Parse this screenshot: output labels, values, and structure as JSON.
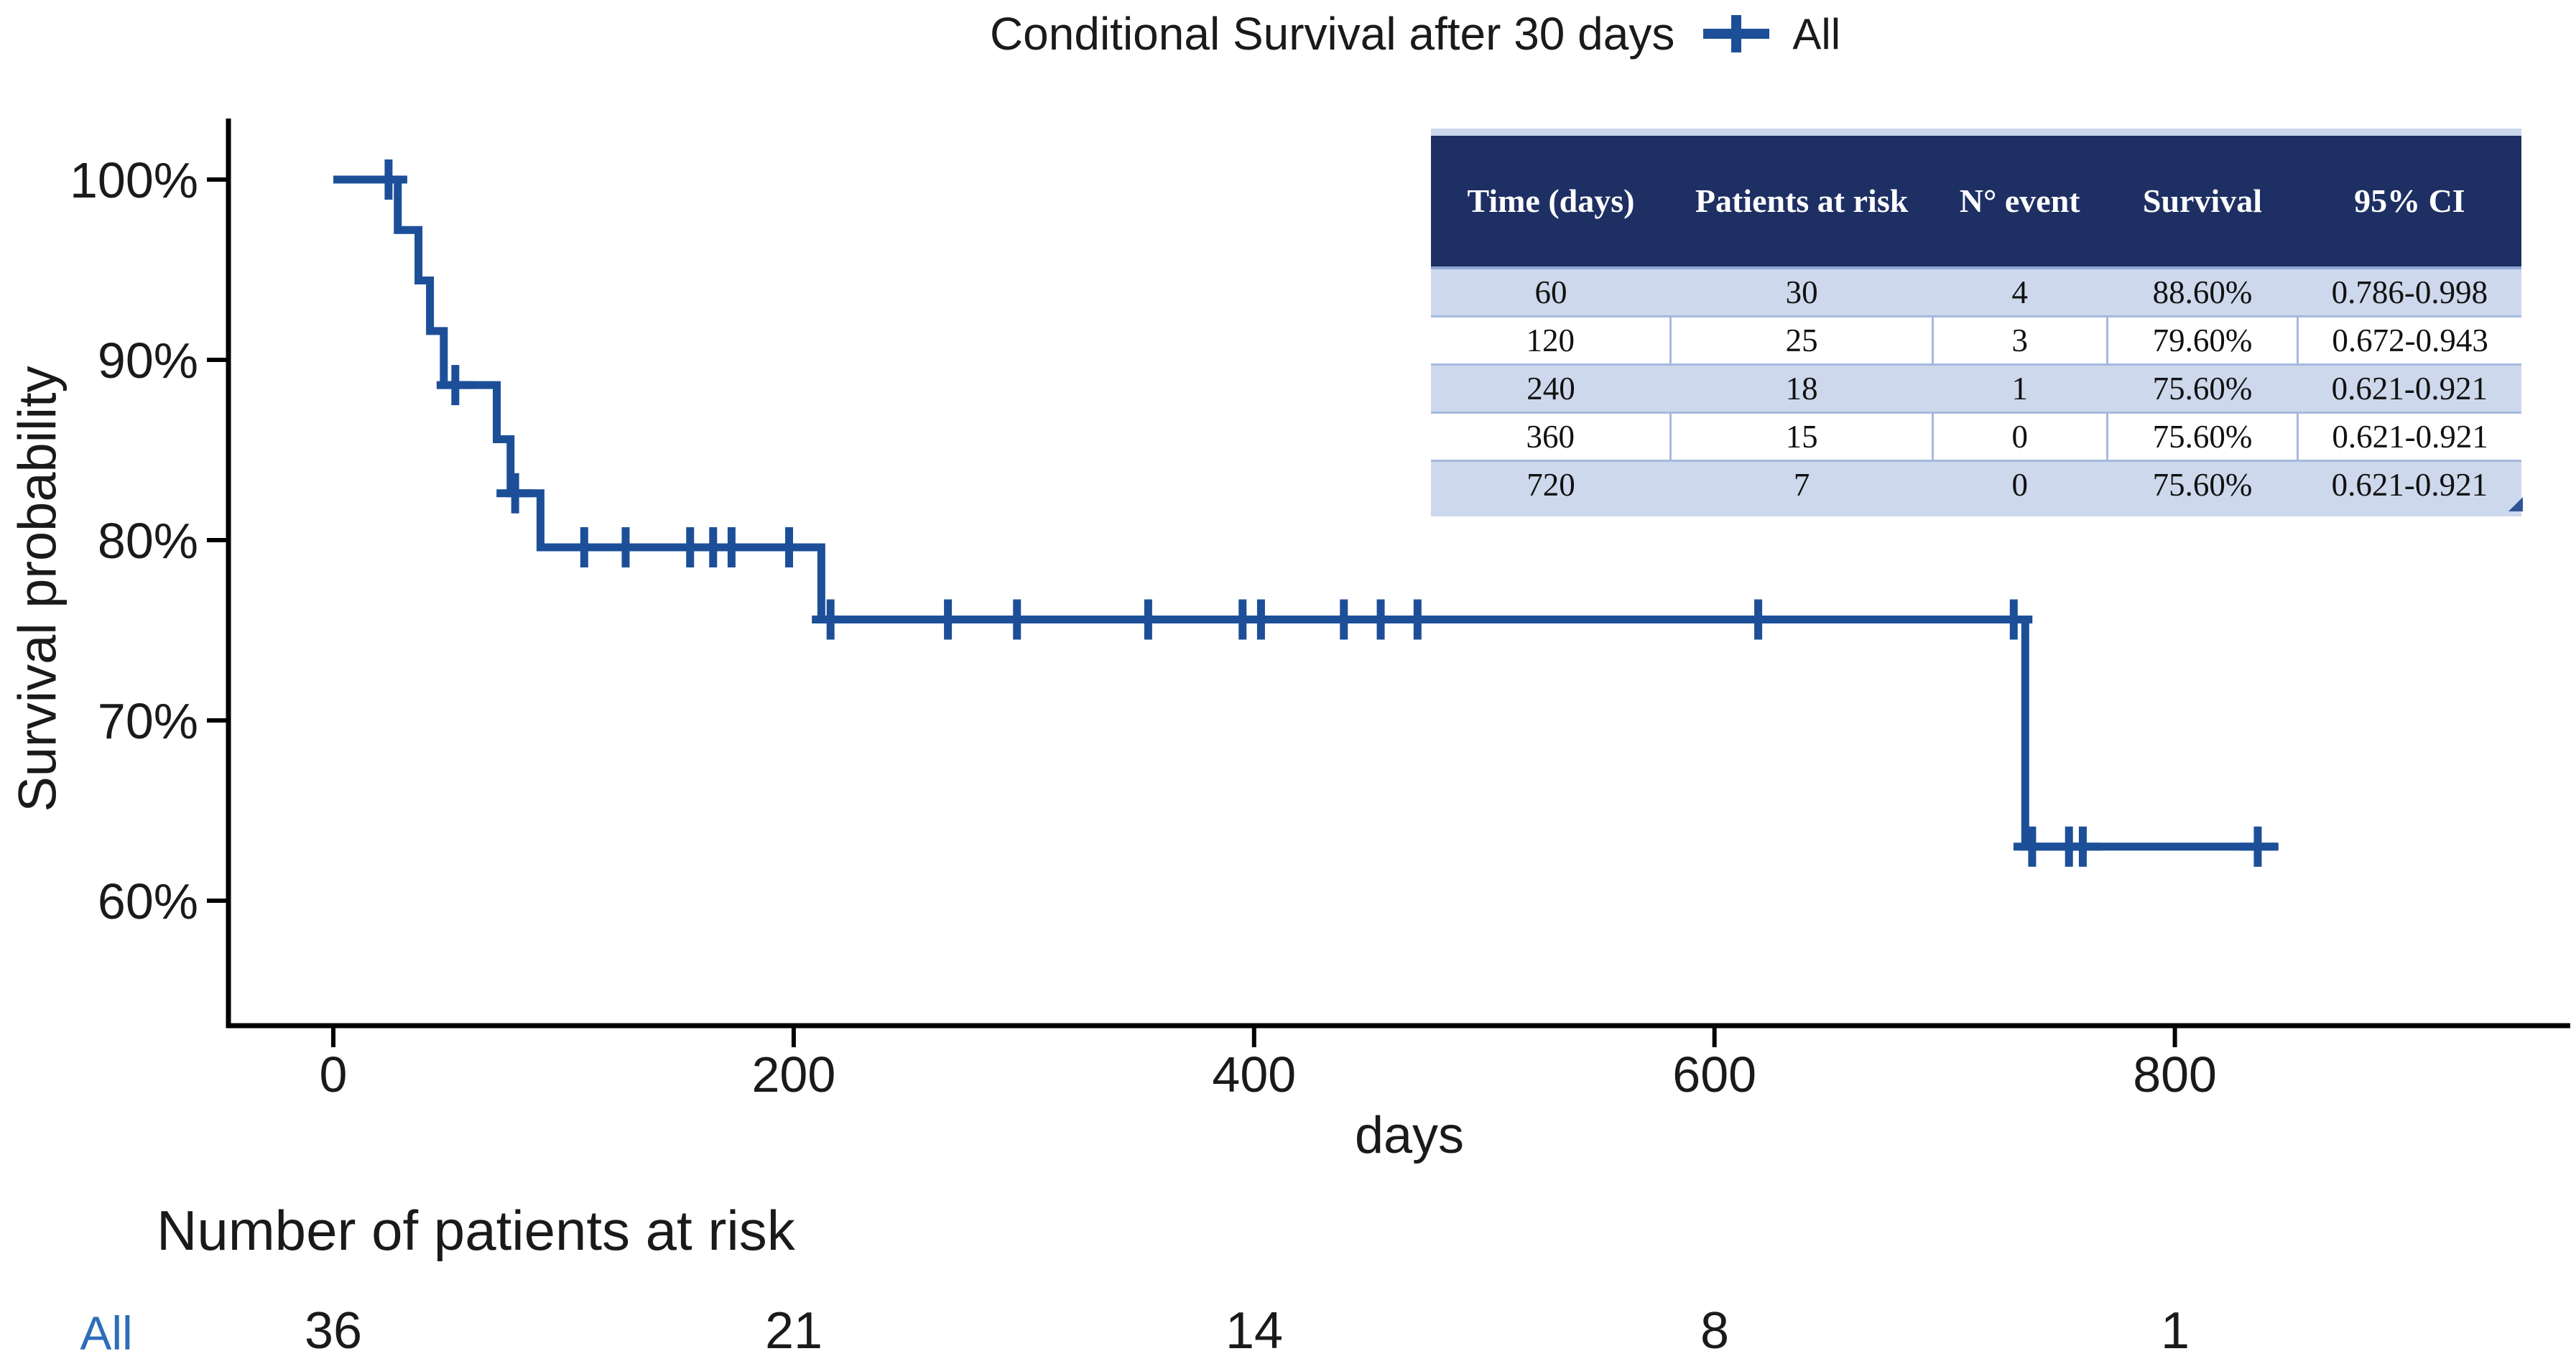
{
  "header": {
    "title": "Conditional Survival after 30 days",
    "legend_label": "All"
  },
  "chart_data": {
    "type": "line",
    "subtype": "kaplan-meier-step-function",
    "title": "Conditional Survival after 30 days",
    "xlabel": "days",
    "ylabel": "Survival probability",
    "x_ticks": [
      0,
      200,
      400,
      600,
      800
    ],
    "y_tick_values": [
      100,
      90,
      80,
      70,
      60
    ],
    "y_tick_labels": [
      "100%",
      "90%",
      "80%",
      "70%",
      "60%"
    ],
    "x_range": [
      0,
      970
    ],
    "y_range": [
      53,
      103
    ],
    "grid": false,
    "legend_position": "top",
    "series": [
      {
        "name": "All",
        "color": "#1c4f98",
        "steps": [
          [
            0,
            100
          ],
          [
            28,
            97.2
          ],
          [
            37,
            94.4
          ],
          [
            42,
            91.6
          ],
          [
            48,
            88.6
          ],
          [
            71,
            85.6
          ],
          [
            77,
            82.6
          ],
          [
            90,
            79.6
          ],
          [
            212,
            75.6
          ],
          [
            735,
            63.0
          ]
        ],
        "end_time": 845,
        "censors": [
          [
            24,
            100
          ],
          [
            53,
            88.6
          ],
          [
            79,
            82.6
          ],
          [
            109,
            79.6
          ],
          [
            127,
            79.6
          ],
          [
            155,
            79.6
          ],
          [
            165,
            79.6
          ],
          [
            173,
            79.6
          ],
          [
            198,
            79.6
          ],
          [
            216,
            75.6
          ],
          [
            267,
            75.6
          ],
          [
            297,
            75.6
          ],
          [
            354,
            75.6
          ],
          [
            395,
            75.6
          ],
          [
            403,
            75.6
          ],
          [
            439,
            75.6
          ],
          [
            455,
            75.6
          ],
          [
            471,
            75.6
          ],
          [
            619,
            75.6
          ],
          [
            730,
            75.6
          ],
          [
            738,
            63.0
          ],
          [
            754,
            63.0
          ],
          [
            760,
            63.0
          ],
          [
            836,
            63.0
          ]
        ]
      }
    ],
    "summary_table": {
      "headers": [
        "Time (days)",
        "Patients at risk",
        "N° event",
        "Survival",
        "95% CI"
      ],
      "rows": [
        [
          "60",
          "30",
          "4",
          "88.60%",
          "0.786-0.998"
        ],
        [
          "120",
          "25",
          "3",
          "79.60%",
          "0.672-0.943"
        ],
        [
          "240",
          "18",
          "1",
          "75.60%",
          "0.621-0.921"
        ],
        [
          "360",
          "15",
          "0",
          "75.60%",
          "0.621-0.921"
        ],
        [
          "720",
          "7",
          "0",
          "75.60%",
          "0.621-0.921"
        ]
      ]
    },
    "risk_table": {
      "heading": "Number of patients at risk",
      "group_label": "All",
      "times": [
        0,
        200,
        400,
        600,
        800
      ],
      "counts": [
        "36",
        "21",
        "14",
        "8",
        "1"
      ]
    }
  },
  "colors": {
    "curve": "#1c4f98",
    "table_header_bg": "#1e2f63",
    "table_band_row": "#cdd8ec",
    "table_border": "#a5b9de",
    "risk_group_label": "#2e6db8",
    "axis": "#000000"
  }
}
